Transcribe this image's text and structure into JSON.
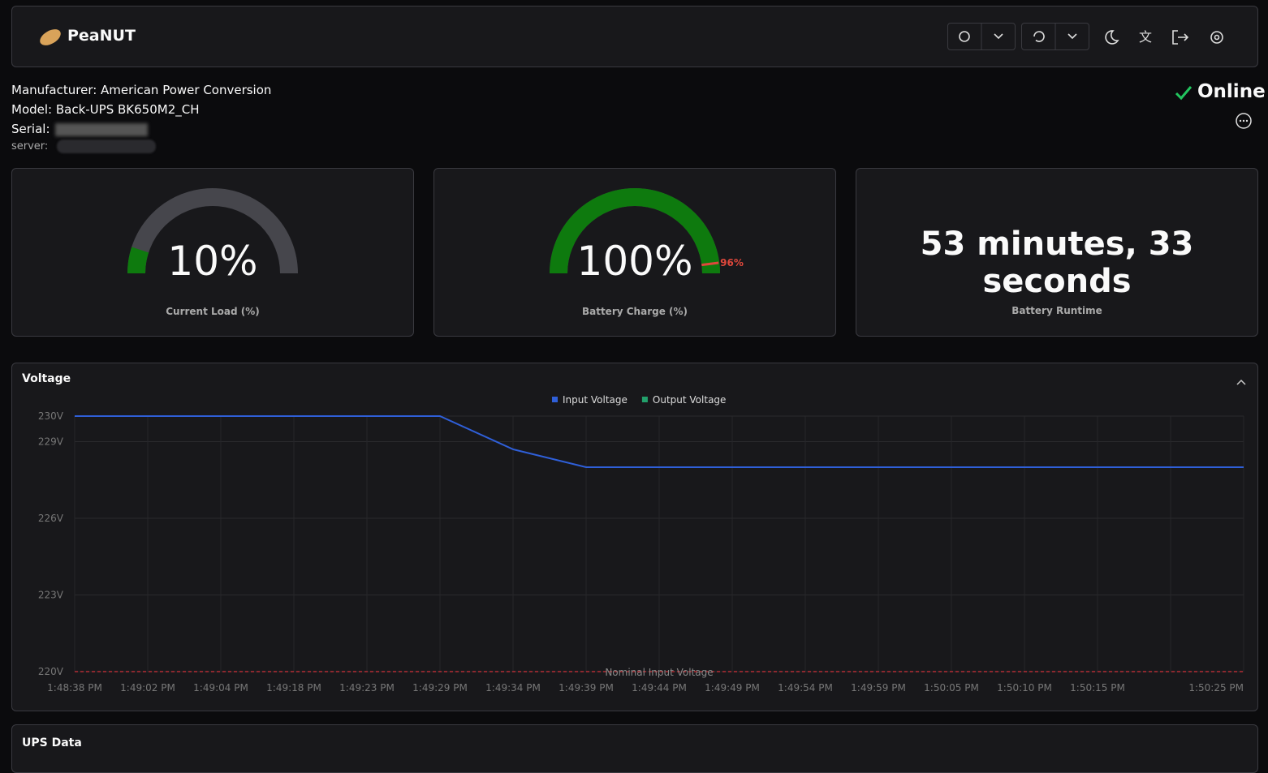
{
  "header": {
    "title": "PeaNUT"
  },
  "device": {
    "manufacturer": "Manufacturer: American Power Conversion",
    "model": "Model: Back-UPS BK650M2_CH",
    "serial_label": "Serial:",
    "server_label": "server:"
  },
  "status": "Online",
  "gauges": [
    {
      "value": 10,
      "value_label": "10%",
      "caption": "Current Load (%)"
    },
    {
      "value": 100,
      "value_label": "100%",
      "caption": "Battery Charge (%)",
      "warning": 96,
      "warning_label": "96%"
    }
  ],
  "runtime": {
    "text": "53 minutes, 33 seconds",
    "caption": "Battery Runtime"
  },
  "chart_data": {
    "type": "line",
    "title": "Voltage",
    "categories": [
      "1:48:38 PM",
      "1:49:02 PM",
      "1:49:04 PM",
      "1:49:18 PM",
      "1:49:23 PM",
      "1:49:29 PM",
      "1:49:34 PM",
      "1:49:39 PM",
      "1:49:44 PM",
      "1:49:49 PM",
      "1:49:54 PM",
      "1:49:59 PM",
      "1:50:05 PM",
      "1:50:10 PM",
      "1:50:15 PM",
      null,
      "1:50:25 PM"
    ],
    "series": [
      {
        "name": "Input Voltage",
        "color": "#2f5fd8",
        "values": [
          230,
          230,
          230,
          230,
          230,
          230,
          228.7,
          228,
          228,
          228,
          228,
          228,
          228,
          228,
          228,
          228,
          228
        ]
      },
      {
        "name": "Output Voltage",
        "color": "#22a06b",
        "values": [
          null,
          null,
          null,
          null,
          null,
          null,
          null,
          null,
          null,
          null,
          null,
          null,
          null,
          null,
          null,
          null,
          null
        ]
      }
    ],
    "ylim": [
      220,
      230
    ],
    "yticks": [
      {
        "value": 220,
        "label": "220V"
      },
      {
        "value": 223,
        "label": "223V"
      },
      {
        "value": 226,
        "label": "226V"
      },
      {
        "value": 229,
        "label": "229V"
      },
      {
        "value": 230,
        "label": "230V"
      }
    ],
    "annotation": {
      "value": 220,
      "label": "Nominal Input Voltage",
      "color": "#d1323a"
    },
    "grid": true
  },
  "ups_data": {
    "title": "UPS Data"
  }
}
